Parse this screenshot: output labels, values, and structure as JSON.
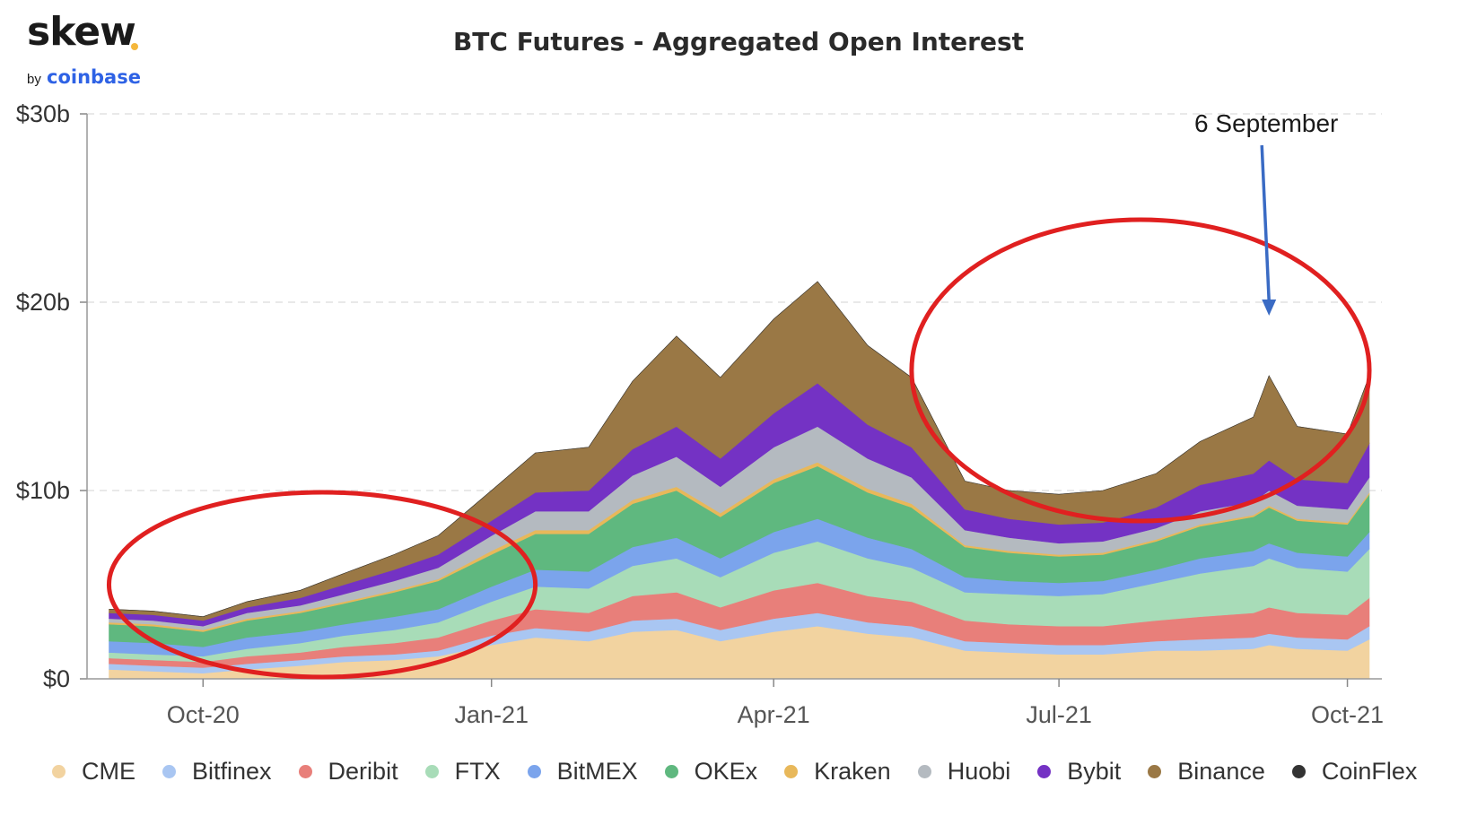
{
  "logo": {
    "word": "skew",
    "by": "by",
    "brand": "coinbase",
    "dot_color": "#f5b73b",
    "brand_color": "#2e62e5"
  },
  "chart_data": {
    "type": "area",
    "stacked": true,
    "title": "BTC Futures - Aggregated Open Interest",
    "xlabel": "",
    "ylabel": "",
    "ylim": [
      0,
      30
    ],
    "y_unit": "USD billions",
    "y_ticks": [
      "$0",
      "$10b",
      "$20b",
      "$30b"
    ],
    "x_ticks": [
      "Oct-20",
      "Jan-21",
      "Apr-21",
      "Jul-21",
      "Oct-21"
    ],
    "grid": "horizontal dashed",
    "legend_position": "bottom",
    "x": [
      "2020-09-01",
      "2020-09-15",
      "2020-10-01",
      "2020-10-15",
      "2020-11-01",
      "2020-11-15",
      "2020-12-01",
      "2020-12-15",
      "2021-01-01",
      "2021-01-15",
      "2021-02-01",
      "2021-02-15",
      "2021-03-01",
      "2021-03-15",
      "2021-04-01",
      "2021-04-15",
      "2021-05-01",
      "2021-05-15",
      "2021-06-01",
      "2021-06-15",
      "2021-07-01",
      "2021-07-15",
      "2021-08-01",
      "2021-08-15",
      "2021-09-01",
      "2021-09-06",
      "2021-09-15",
      "2021-10-01",
      "2021-10-08"
    ],
    "series": [
      {
        "name": "CME",
        "color": "#f2d3a0",
        "values": [
          0.5,
          0.4,
          0.3,
          0.5,
          0.7,
          0.9,
          1.0,
          1.2,
          1.8,
          2.2,
          2.0,
          2.5,
          2.6,
          2.0,
          2.5,
          2.8,
          2.4,
          2.2,
          1.5,
          1.4,
          1.3,
          1.3,
          1.5,
          1.5,
          1.6,
          1.8,
          1.6,
          1.5,
          2.1
        ]
      },
      {
        "name": "Bitfinex",
        "color": "#a9c6f2",
        "values": [
          0.3,
          0.3,
          0.3,
          0.3,
          0.3,
          0.3,
          0.3,
          0.3,
          0.5,
          0.5,
          0.5,
          0.6,
          0.6,
          0.6,
          0.7,
          0.7,
          0.6,
          0.6,
          0.5,
          0.5,
          0.5,
          0.5,
          0.5,
          0.6,
          0.6,
          0.6,
          0.6,
          0.6,
          0.7
        ]
      },
      {
        "name": "Deribit",
        "color": "#e87f7a",
        "values": [
          0.3,
          0.3,
          0.3,
          0.4,
          0.4,
          0.5,
          0.6,
          0.7,
          0.8,
          1.0,
          1.0,
          1.3,
          1.4,
          1.2,
          1.5,
          1.6,
          1.4,
          1.3,
          1.1,
          1.0,
          1.0,
          1.0,
          1.1,
          1.2,
          1.3,
          1.4,
          1.3,
          1.3,
          1.5
        ]
      },
      {
        "name": "FTX",
        "color": "#a8dcb8",
        "values": [
          0.3,
          0.3,
          0.3,
          0.4,
          0.5,
          0.6,
          0.7,
          0.8,
          1.0,
          1.2,
          1.3,
          1.6,
          1.8,
          1.6,
          2.0,
          2.2,
          2.0,
          1.8,
          1.5,
          1.6,
          1.6,
          1.7,
          2.0,
          2.3,
          2.5,
          2.6,
          2.4,
          2.3,
          2.6
        ]
      },
      {
        "name": "BitMEX",
        "color": "#7ba4ec",
        "values": [
          0.6,
          0.6,
          0.5,
          0.6,
          0.6,
          0.6,
          0.7,
          0.7,
          0.8,
          0.9,
          0.9,
          1.0,
          1.1,
          1.0,
          1.1,
          1.2,
          1.1,
          1.0,
          0.8,
          0.7,
          0.7,
          0.7,
          0.7,
          0.8,
          0.8,
          0.8,
          0.8,
          0.8,
          0.9
        ]
      },
      {
        "name": "OKEx",
        "color": "#5fb87f",
        "values": [
          0.9,
          0.9,
          0.8,
          0.9,
          1.0,
          1.1,
          1.3,
          1.5,
          1.7,
          1.9,
          2.0,
          2.3,
          2.5,
          2.2,
          2.6,
          2.8,
          2.4,
          2.2,
          1.6,
          1.5,
          1.4,
          1.4,
          1.5,
          1.7,
          1.8,
          1.9,
          1.7,
          1.7,
          2.0
        ]
      },
      {
        "name": "Kraken",
        "color": "#e8b85a",
        "values": [
          0.1,
          0.1,
          0.1,
          0.1,
          0.1,
          0.1,
          0.1,
          0.1,
          0.2,
          0.2,
          0.2,
          0.2,
          0.2,
          0.2,
          0.2,
          0.2,
          0.2,
          0.2,
          0.1,
          0.1,
          0.1,
          0.1,
          0.1,
          0.1,
          0.1,
          0.1,
          0.1,
          0.1,
          0.1
        ]
      },
      {
        "name": "Huobi",
        "color": "#b4bac0",
        "values": [
          0.2,
          0.2,
          0.2,
          0.3,
          0.3,
          0.4,
          0.5,
          0.6,
          0.8,
          1.0,
          1.0,
          1.3,
          1.6,
          1.4,
          1.7,
          1.9,
          1.6,
          1.4,
          0.8,
          0.7,
          0.6,
          0.6,
          0.6,
          0.7,
          0.7,
          0.8,
          0.7,
          0.7,
          0.8
        ]
      },
      {
        "name": "Bybit",
        "color": "#7432c4",
        "values": [
          0.3,
          0.3,
          0.3,
          0.3,
          0.4,
          0.5,
          0.6,
          0.7,
          0.8,
          1.0,
          1.1,
          1.4,
          1.6,
          1.5,
          1.8,
          2.3,
          1.8,
          1.6,
          1.1,
          1.0,
          1.0,
          1.0,
          1.1,
          1.4,
          1.5,
          1.6,
          1.4,
          1.4,
          1.8
        ]
      },
      {
        "name": "Binance",
        "color": "#9a7845",
        "values": [
          0.2,
          0.2,
          0.2,
          0.3,
          0.4,
          0.6,
          0.8,
          1.0,
          1.6,
          2.1,
          2.3,
          3.6,
          4.8,
          4.3,
          5.0,
          5.4,
          4.2,
          3.7,
          1.5,
          1.5,
          1.6,
          1.7,
          1.8,
          2.3,
          3.0,
          4.5,
          2.8,
          2.6,
          3.6
        ]
      },
      {
        "name": "CoinFlex",
        "color": "#333333",
        "values": [
          0,
          0,
          0,
          0,
          0,
          0,
          0,
          0,
          0,
          0,
          0,
          0,
          0,
          0,
          0,
          0,
          0,
          0,
          0,
          0,
          0,
          0,
          0,
          0,
          0,
          0,
          0,
          0,
          0
        ]
      }
    ],
    "annotations": [
      {
        "text": "6 September",
        "x": "2021-09-06"
      }
    ],
    "highlights": [
      {
        "x_start": "2020-09-01",
        "x_end": "2021-01-15",
        "shape": "ellipse",
        "color": "#e02020"
      },
      {
        "x_start": "2021-05-15",
        "x_end": "2021-10-08",
        "shape": "ellipse",
        "color": "#e02020"
      }
    ],
    "annotation_arrow_color": "#3a6bc4"
  }
}
